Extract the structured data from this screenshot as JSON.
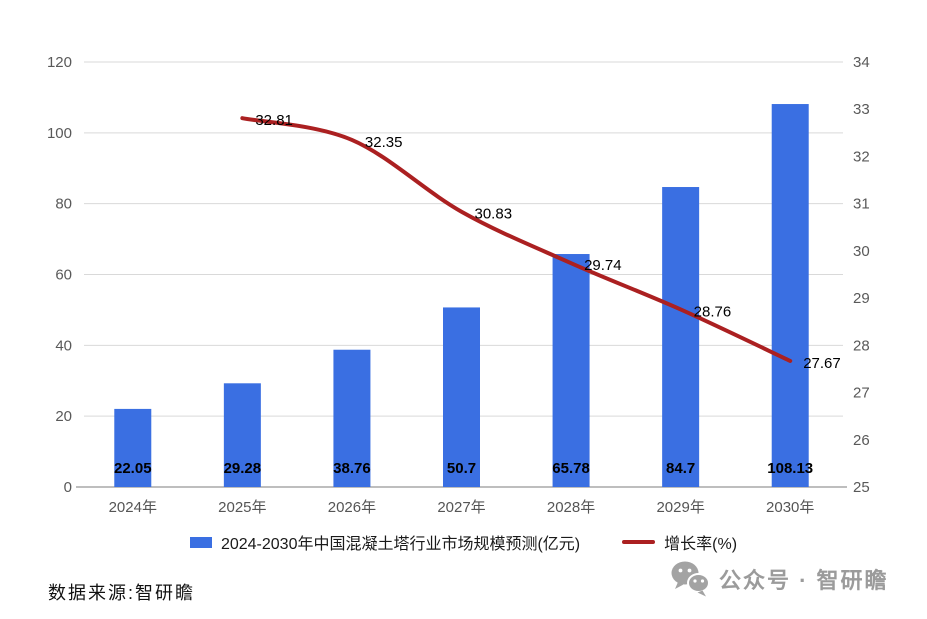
{
  "chart_data": {
    "type": "bar",
    "subtype": "bar-line-combo",
    "categories": [
      "2024年",
      "2025年",
      "2026年",
      "2027年",
      "2028年",
      "2029年",
      "2030年"
    ],
    "series": [
      {
        "name": "2024-2030年中国混凝土塔行业市场规模预测(亿元)",
        "kind": "bar",
        "axis": "left",
        "color": "#3a6fe2",
        "values": [
          22.05,
          29.28,
          38.76,
          50.7,
          65.78,
          84.7,
          108.13
        ]
      },
      {
        "name": "增长率(%)",
        "kind": "line",
        "axis": "right",
        "color": "#ab2021",
        "values": [
          null,
          32.81,
          32.35,
          30.83,
          29.74,
          28.76,
          27.67
        ]
      }
    ],
    "left_axis": {
      "min": 0,
      "max": 120,
      "ticks": [
        0,
        20,
        40,
        60,
        80,
        100,
        120
      ]
    },
    "right_axis": {
      "min": 25,
      "max": 34,
      "ticks": [
        25,
        26,
        27,
        28,
        29,
        30,
        31,
        32,
        33,
        34
      ]
    },
    "grid": true,
    "legend_position": "bottom",
    "label_color": "#000000",
    "axis_text_color": "#595959",
    "grid_color": "#d9d9d9",
    "axis_line_color": "#a8a8a8"
  },
  "footer": {
    "source_text": "数据来源:智研瞻",
    "watermark": "公众号 · 智研瞻"
  }
}
